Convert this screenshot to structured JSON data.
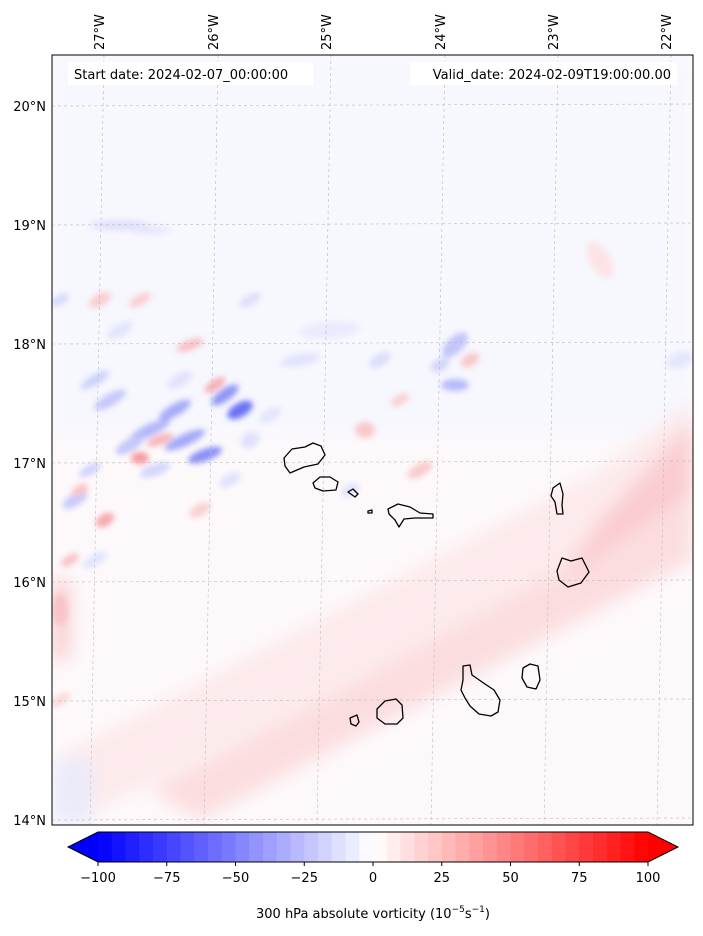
{
  "header": {
    "start_date": "Start date: 2024-02-07_00:00:00",
    "valid_date": "Valid_date: 2024-02-09T19:00:00.00"
  },
  "map": {
    "lon_labels": [
      "27°W",
      "26°W",
      "25°W",
      "24°W",
      "23°W",
      "22°W"
    ],
    "lat_labels": [
      "20°N",
      "19°N",
      "18°N",
      "17°N",
      "16°N",
      "15°N",
      "14°N"
    ]
  },
  "colorbar": {
    "ticks": [
      "−100",
      "−75",
      "−50",
      "−25",
      "0",
      "25",
      "50",
      "75",
      "100"
    ],
    "label": "300 hPa absolute vorticity (10",
    "label_exp1": "−5",
    "label_mid": "s",
    "label_exp2": "−1",
    "label_end": ")",
    "cmap_neg": "#0000ff",
    "cmap_pos": "#ff0000"
  }
}
